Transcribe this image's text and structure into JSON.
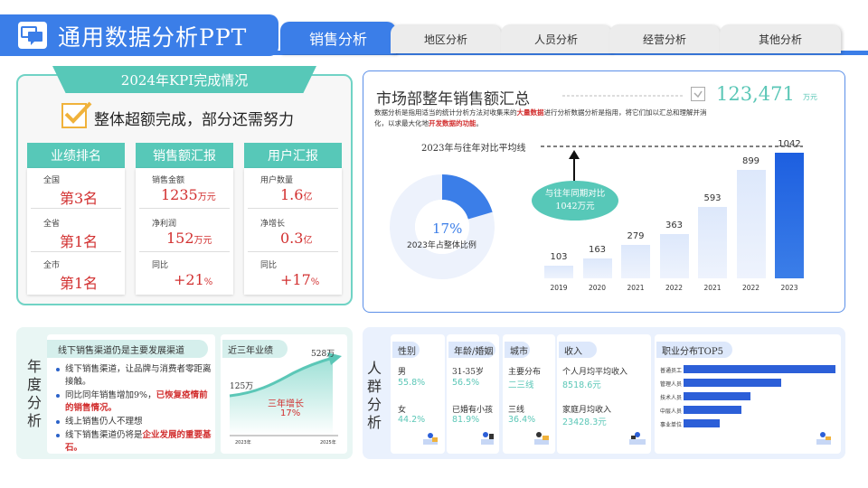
{
  "header": {
    "title": "通用数据分析PPT",
    "tabs": [
      {
        "label": "销售分析",
        "active": true
      },
      {
        "label": "地区分析",
        "active": false
      },
      {
        "label": "人员分析",
        "active": false
      },
      {
        "label": "经营分析",
        "active": false
      },
      {
        "label": "其他分析",
        "active": false
      }
    ]
  },
  "kpi": {
    "title": "2024年KPI完成情况",
    "subtitle": "整体超额完成，部分还需努力",
    "columns": [
      {
        "head": "业绩排名",
        "rows": [
          {
            "label": "全国",
            "value": "第3名",
            "unit": ""
          },
          {
            "label": "全省",
            "value": "第1名",
            "unit": ""
          },
          {
            "label": "全市",
            "value": "第1名",
            "unit": ""
          }
        ]
      },
      {
        "head": "销售额汇报",
        "rows": [
          {
            "label": "销售金额",
            "value": "1235",
            "unit": "万元"
          },
          {
            "label": "净利润",
            "value": "152",
            "unit": "万元"
          },
          {
            "label": "同比",
            "value": "+21",
            "unit": "%"
          }
        ]
      },
      {
        "head": "用户汇报",
        "rows": [
          {
            "label": "用户数量",
            "value": "1.6",
            "unit": "亿"
          },
          {
            "label": "净增长",
            "value": "0.3",
            "unit": "亿"
          },
          {
            "label": "同比",
            "value": "+17",
            "unit": "%"
          }
        ]
      }
    ]
  },
  "sales": {
    "title": "市场部整年销售额汇总",
    "total": "123,471",
    "total_unit": "万元",
    "desc_part1": "数据分析是指用适当的统计分析方法对收集来的",
    "desc_bold1": "大量数据",
    "desc_part2": "进行分析数据分析是指用，将它们加以汇总和理解并消化，以求最大化地",
    "desc_bold2": "开发数据的功能",
    "desc_part3": "。",
    "avg_line_label": "2023年与往年对比平均线",
    "donut_percent": "17%",
    "donut_percent_value": 17,
    "donut_label": "2023年占整体比例",
    "bubble_line1": "与往年同期对比",
    "bubble_line2": "1042万元",
    "colors": {
      "accent": "#3b7ee8",
      "teal": "#5bc7b7",
      "highlight": "#d23030"
    }
  },
  "chart_data": {
    "type": "bar",
    "categories": [
      "2019",
      "2020",
      "2021",
      "2022",
      "2021",
      "2022",
      "2023"
    ],
    "values": [
      103,
      163,
      279,
      363,
      593,
      899,
      1042
    ],
    "ylim": [
      0,
      1100
    ]
  },
  "annual": {
    "label": "年度分析",
    "card1_title": "线下销售渠道仍是主要发展渠道",
    "items": [
      {
        "text": "线下销售渠道，让品牌与消费者零距离接触。",
        "bold": ""
      },
      {
        "text": "同比同年销售增加9%，",
        "bold": "已恢复疫情前的销售情况。"
      },
      {
        "text": "线上销售仍人不理想",
        "bold": ""
      },
      {
        "text": "线下销售渠道仍将是",
        "bold": "企业发展的重要基石。"
      }
    ],
    "card2_title": "近三年业绩",
    "start_value": "125万",
    "end_value": "528万",
    "growth_label": "三年增长",
    "growth_value": "17%",
    "start_year": "2023年",
    "end_year": "2025年"
  },
  "crowd": {
    "label": "人群分析",
    "gender": {
      "head": "性别",
      "rows": [
        {
          "label": "男",
          "value": "55.8%"
        },
        {
          "label": "女",
          "value": "44.2%"
        }
      ]
    },
    "age": {
      "head": "年龄/婚姻",
      "rows": [
        {
          "label": "31-35岁",
          "value": "56.5%"
        },
        {
          "label": "已婚有小孩",
          "value": "81.9%"
        }
      ]
    },
    "city": {
      "head": "城市",
      "rows": [
        {
          "label": "主要分布",
          "value": "二三线"
        },
        {
          "label": "三线",
          "value": "36.4%"
        }
      ]
    },
    "income": {
      "head": "收入",
      "rows": [
        {
          "label": "个人月均平均收入",
          "value": "8518.6元"
        },
        {
          "label": "家庭月均收入",
          "value": "23428.3元"
        }
      ]
    },
    "jobs": {
      "head": "职业分布TOP5",
      "items": [
        {
          "label": "普通员工",
          "value": 100
        },
        {
          "label": "管理人员",
          "value": 64
        },
        {
          "label": "技术人员",
          "value": 44
        },
        {
          "label": "中层人员",
          "value": 38
        },
        {
          "label": "事业单位",
          "value": 24
        }
      ]
    }
  }
}
